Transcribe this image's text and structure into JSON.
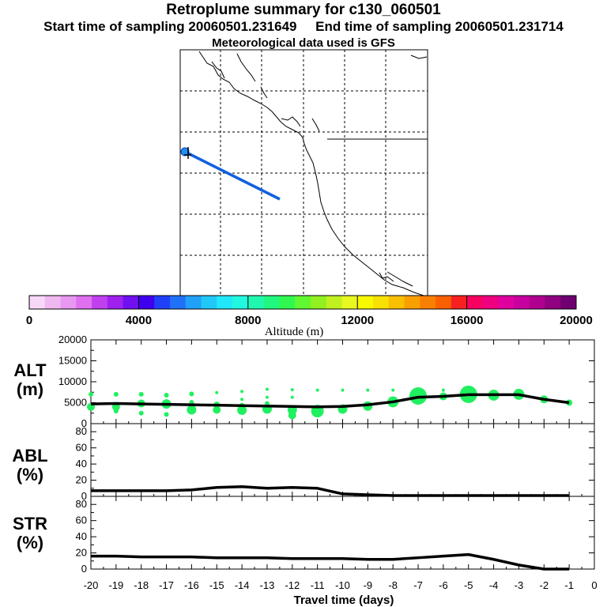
{
  "header": {
    "title": "Retroplume summary for c130_060501",
    "start_label": "Start time of sampling 20060501.231649",
    "end_label": "End time of sampling 20060501.231714",
    "met_label": "Meteorological data used is GFS"
  },
  "colorbar": {
    "label": "Altitude (m)",
    "ticks": [
      0,
      4000,
      8000,
      12000,
      16000,
      20000
    ],
    "tick_labels": [
      "0",
      "4000",
      "8000",
      "12000",
      "16000",
      "20000"
    ],
    "colors": [
      "#f8d8f8",
      "#f0b8f0",
      "#e898f0",
      "#e070f0",
      "#c040f0",
      "#a020f0",
      "#7010f0",
      "#4000f0",
      "#2040f8",
      "#2070f8",
      "#20a0f8",
      "#20c8f8",
      "#20e8f8",
      "#20f8e0",
      "#20f8b0",
      "#20f880",
      "#30f850",
      "#60f830",
      "#90f020",
      "#c0f020",
      "#e8f820",
      "#f8f800",
      "#f8e000",
      "#f8c000",
      "#f8a000",
      "#f88000",
      "#f86000",
      "#f82020",
      "#f80060",
      "#f00080",
      "#e000a0",
      "#c800a0",
      "#b00090",
      "#900080",
      "#700070"
    ]
  },
  "chart_data": [
    {
      "type": "line",
      "panel": "ALT",
      "ylabel": "ALT (m)",
      "ylim": [
        0,
        20000
      ],
      "yticks": [
        0,
        5000,
        10000,
        15000,
        20000
      ],
      "ytick_labels": [
        "0",
        "5000",
        "10000",
        "15000",
        "20000"
      ],
      "x": [
        -20,
        -19,
        -18,
        -17,
        -16,
        -15,
        -14,
        -13,
        -12,
        -11,
        -10,
        -9,
        -8,
        -7,
        -6,
        -5,
        -4,
        -3,
        -2,
        -1
      ],
      "mean_altitude": [
        4700,
        4800,
        4700,
        4600,
        4500,
        4400,
        4300,
        4200,
        4100,
        4000,
        4100,
        4500,
        5200,
        6300,
        6500,
        6900,
        6900,
        6900,
        5800,
        5000
      ],
      "dots": [
        {
          "x": -20,
          "y": 7000,
          "s": 3
        },
        {
          "x": -20,
          "y": 4000,
          "s": 5
        },
        {
          "x": -19,
          "y": 7000,
          "s": 3
        },
        {
          "x": -19,
          "y": 4000,
          "s": 5
        },
        {
          "x": -19,
          "y": 3000,
          "s": 3
        },
        {
          "x": -18,
          "y": 7000,
          "s": 3
        },
        {
          "x": -18,
          "y": 2500,
          "s": 3
        },
        {
          "x": -18,
          "y": 4800,
          "s": 5
        },
        {
          "x": -17,
          "y": 6800,
          "s": 3
        },
        {
          "x": -17,
          "y": 4700,
          "s": 6
        },
        {
          "x": -17,
          "y": 2200,
          "s": 3
        },
        {
          "x": -16,
          "y": 7100,
          "s": 3
        },
        {
          "x": -16,
          "y": 5100,
          "s": 3
        },
        {
          "x": -16,
          "y": 3300,
          "s": 6
        },
        {
          "x": -15,
          "y": 7400,
          "s": 2
        },
        {
          "x": -15,
          "y": 4500,
          "s": 4
        },
        {
          "x": -15,
          "y": 3300,
          "s": 5
        },
        {
          "x": -14,
          "y": 7700,
          "s": 2
        },
        {
          "x": -14,
          "y": 5800,
          "s": 2
        },
        {
          "x": -14,
          "y": 4400,
          "s": 3
        },
        {
          "x": -14,
          "y": 3200,
          "s": 6
        },
        {
          "x": -13,
          "y": 8200,
          "s": 2
        },
        {
          "x": -13,
          "y": 6300,
          "s": 2
        },
        {
          "x": -13,
          "y": 4800,
          "s": 3
        },
        {
          "x": -13,
          "y": 3500,
          "s": 6
        },
        {
          "x": -12,
          "y": 8100,
          "s": 2
        },
        {
          "x": -12,
          "y": 6300,
          "s": 2
        },
        {
          "x": -12,
          "y": 3300,
          "s": 6
        },
        {
          "x": -12,
          "y": 2000,
          "s": 5
        },
        {
          "x": -11,
          "y": 8000,
          "s": 2
        },
        {
          "x": -11,
          "y": 3000,
          "s": 8
        },
        {
          "x": -10,
          "y": 8000,
          "s": 2
        },
        {
          "x": -10,
          "y": 3500,
          "s": 6
        },
        {
          "x": -9,
          "y": 8000,
          "s": 2
        },
        {
          "x": -9,
          "y": 4200,
          "s": 6
        },
        {
          "x": -8,
          "y": 8000,
          "s": 2
        },
        {
          "x": -8,
          "y": 5200,
          "s": 7
        },
        {
          "x": -7,
          "y": 6600,
          "s": 11
        },
        {
          "x": -6,
          "y": 8000,
          "s": 2
        },
        {
          "x": -6,
          "y": 6500,
          "s": 5
        },
        {
          "x": -5,
          "y": 7000,
          "s": 11
        },
        {
          "x": -4,
          "y": 6800,
          "s": 7
        },
        {
          "x": -3,
          "y": 7000,
          "s": 7
        },
        {
          "x": -2,
          "y": 5800,
          "s": 5
        },
        {
          "x": -1,
          "y": 5000,
          "s": 4
        }
      ]
    },
    {
      "type": "line",
      "panel": "ABL",
      "ylabel": "ABL (%)",
      "ylim": [
        0,
        90
      ],
      "yticks": [
        0,
        20,
        40,
        60,
        80
      ],
      "ytick_labels": [
        "0",
        "20",
        "40",
        "60",
        "80"
      ],
      "x": [
        -20,
        -19,
        -18,
        -17,
        -16,
        -15,
        -14,
        -13,
        -12,
        -11,
        -10,
        -9,
        -8,
        -7,
        -6,
        -5,
        -4,
        -3,
        -2,
        -1
      ],
      "values": [
        7,
        7,
        7,
        7,
        8,
        11,
        12,
        10,
        11,
        10,
        3,
        2,
        1,
        1,
        1,
        1,
        1,
        1,
        1,
        1
      ]
    },
    {
      "type": "line",
      "panel": "STR",
      "ylabel": "STR (%)",
      "ylim": [
        0,
        90
      ],
      "yticks": [
        0,
        20,
        40,
        60,
        80
      ],
      "ytick_labels": [
        "0",
        "20",
        "40",
        "60",
        "80"
      ],
      "x": [
        -20,
        -19,
        -18,
        -17,
        -16,
        -15,
        -14,
        -13,
        -12,
        -11,
        -10,
        -9,
        -8,
        -7,
        -6,
        -5,
        -4,
        -3,
        -2,
        -1
      ],
      "values": [
        16,
        16,
        15,
        15,
        15,
        14,
        14,
        14,
        13,
        13,
        13,
        12,
        12,
        14,
        16,
        18,
        12,
        5,
        0,
        0
      ],
      "xlim": [
        -20,
        0
      ],
      "xticks": [
        -20,
        -19,
        -18,
        -17,
        -16,
        -15,
        -14,
        -13,
        -12,
        -11,
        -10,
        -9,
        -8,
        -7,
        -6,
        -5,
        -4,
        -3,
        -2,
        -1,
        0
      ],
      "xtick_labels": [
        "-20",
        "-19",
        "-18",
        "-17",
        "-16",
        "-15",
        "-14",
        "-13",
        "-12",
        "-11",
        "-10",
        "-9",
        "-8",
        "-7",
        "-6",
        "-5",
        "-4",
        "-3",
        "-2",
        "-1",
        "0"
      ],
      "xlabel": "Travel time (days)"
    }
  ],
  "panel_labels": {
    "alt": [
      "ALT",
      "(m)"
    ],
    "abl": [
      "ABL",
      "(%)"
    ],
    "str": [
      "STR",
      "(%)"
    ]
  },
  "colors": {
    "trajectory": "#1060e0",
    "dot": "#20f060",
    "line": "#000000"
  }
}
